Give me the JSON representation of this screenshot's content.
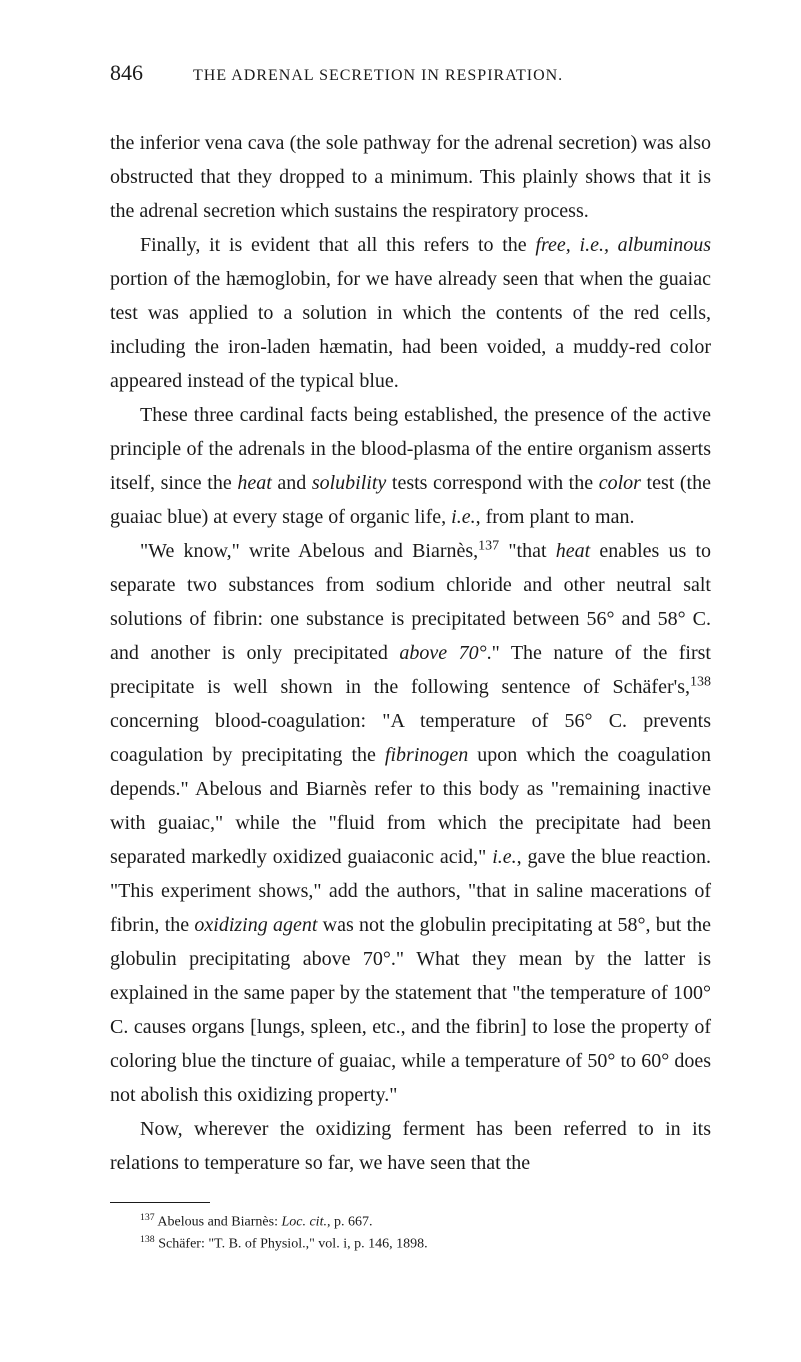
{
  "header": {
    "pageNumber": "846",
    "chapterTitle": "THE ADRENAL SECRETION IN RESPIRATION."
  },
  "paragraphs": {
    "p1": "the inferior vena cava (the sole pathway for the adrenal secretion) was also obstructed that they dropped to a minimum. This plainly shows that it is the adrenal secretion which sustains the respiratory process.",
    "p2_pre": "Finally, it is evident that all this refers to the ",
    "p2_em1": "free, i.e., albuminous",
    "p2_post": " portion of the hæmoglobin, for we have already seen that when the guaiac test was applied to a solution in which the contents of the red cells, including the iron-laden hæmatin, had been voided, a muddy-red color appeared instead of the typical blue.",
    "p3_pre": "These three cardinal facts being established, the presence of the active principle of the adrenals in the blood-plasma of the entire organism asserts itself, since the ",
    "p3_em1": "heat",
    "p3_mid1": " and ",
    "p3_em2": "solubility",
    "p3_mid2": " tests correspond with the ",
    "p3_em3": "color",
    "p3_mid3": " test (the guaiac blue) at every stage of organic life, ",
    "p3_em4": "i.e.",
    "p3_post": ", from plant to man.",
    "p4_pre": "\"We know,\" write Abelous and Biarnès,",
    "p4_sup1": "137",
    "p4_mid1": " \"that ",
    "p4_em1": "heat",
    "p4_mid2": " enables us to separate two substances from sodium chloride and other neutral salt solutions of fibrin: one substance is precipitated between 56° and 58° C. and another is only precipitated ",
    "p4_em2": "above 70°",
    "p4_mid3": ".\" The nature of the first precipitate is well shown in the following sentence of Schäfer's,",
    "p4_sup2": "138",
    "p4_mid4": " concerning blood-coagulation: \"A temperature of 56° C. prevents coagulation by precipitating the ",
    "p4_em3": "fibrinogen",
    "p4_mid5": " upon which the coagulation depends.\" Abelous and Biarnès refer to this body as \"remaining inactive with guaiac,\" while the \"fluid from which the precipitate had been separated markedly oxidized guaiaconic acid,\" ",
    "p4_em4": "i.e.",
    "p4_mid6": ", gave the blue reaction. \"This experiment shows,\" add the authors, \"that in saline macerations of fibrin, the ",
    "p4_em5": "oxidizing agent",
    "p4_mid7": " was not the globulin precipitating at 58°, but the globulin precipitating above 70°.\" What they mean by the latter is explained in the same paper by the statement that \"the temperature of 100° C. causes organs [lungs, spleen, etc., and the fibrin] to lose the property of coloring blue the tincture of guaiac, while a temperature of 50° to 60° does not abolish this oxidizing property.\"",
    "p5": "Now, wherever the oxidizing ferment has been referred to in its relations to temperature so far, we have seen that the"
  },
  "footnotes": {
    "f1_sup": "137",
    "f1_text": " Abelous and Biarnès: ",
    "f1_em": "Loc. cit.",
    "f1_post": ", p. 667.",
    "f2_sup": "138",
    "f2_text": " Schäfer: \"T. B. of Physiol.,\" vol. i, p. 146, 1898."
  }
}
